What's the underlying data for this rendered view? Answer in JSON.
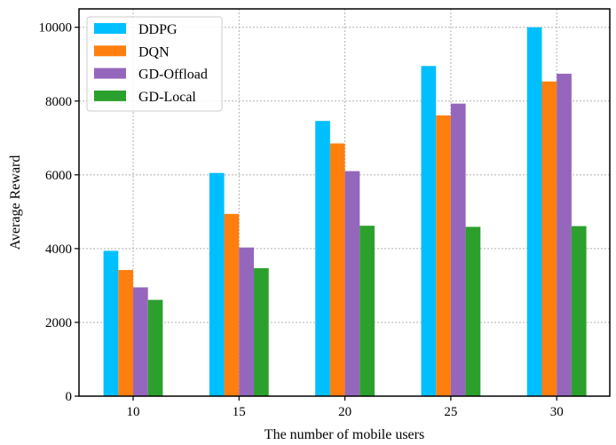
{
  "chart_data": {
    "type": "bar",
    "title": "",
    "xlabel": "The number of mobile users",
    "ylabel": "Average Reward",
    "categories": [
      "10",
      "15",
      "20",
      "25",
      "30"
    ],
    "ylim": [
      0,
      10500
    ],
    "yticks": [
      "0",
      "2000",
      "4000",
      "6000",
      "8000",
      "10000"
    ],
    "grid": true,
    "legend_position": "top-left",
    "series": [
      {
        "name": "DDPG",
        "color": "#00bfff",
        "values": [
          3940,
          6050,
          7460,
          8950,
          10000
        ]
      },
      {
        "name": "DQN",
        "color": "#ff7f0e",
        "values": [
          3420,
          4940,
          6850,
          7610,
          8530
        ]
      },
      {
        "name": "GD-Offload",
        "color": "#9467bd",
        "values": [
          2950,
          4030,
          6100,
          7930,
          8740
        ]
      },
      {
        "name": "GD-Local",
        "color": "#2ca02c",
        "values": [
          2610,
          3470,
          4620,
          4590,
          4610
        ]
      }
    ]
  }
}
